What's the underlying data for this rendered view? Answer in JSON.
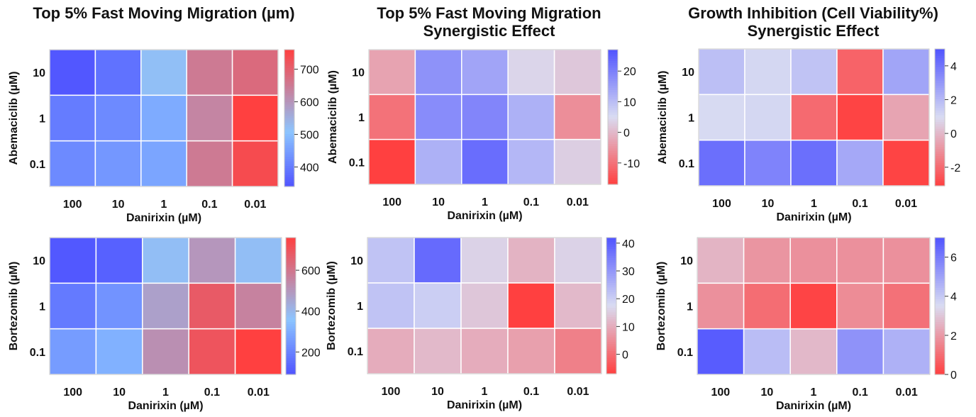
{
  "titles": {
    "col1": "Top 5%  Fast Moving Migration (µm)",
    "col2_line1": "Top 5%  Fast Moving Migration",
    "col2_line2": "Synergistic Effect",
    "col3_line1": "Growth Inhibition (Cell Viability%)",
    "col3_line2": "Synergistic Effect"
  },
  "colors": {
    "low": "#5054ff",
    "mid": "#d9dcf2",
    "mid_light_blue": "#8cc5ff",
    "high": "#ff4040",
    "grid": "#ffffff"
  },
  "chart_data": [
    {
      "type": "heatmap",
      "title": "Top 5%  Fast Moving Migration (µm)",
      "xlabel": "Danirixin (µM)",
      "ylabel": "Abemaciclib (µM)",
      "x_categories": [
        "100",
        "10",
        "1",
        "0.1",
        "0.01"
      ],
      "y_categories": [
        "10",
        "1",
        "0.1"
      ],
      "values": [
        [
          345,
          385,
          520,
          650,
          680
        ],
        [
          400,
          420,
          470,
          630,
          760
        ],
        [
          420,
          440,
          460,
          650,
          740
        ]
      ],
      "colorbar": {
        "ticks": [
          400,
          500,
          600,
          700
        ],
        "range": [
          340,
          760
        ],
        "scale": "blue-lightblue-red"
      }
    },
    {
      "type": "heatmap",
      "title": "Top 5%  Fast Moving Migration Synergistic Effect",
      "xlabel": "Danirixin (µM)",
      "ylabel": "Abemaciclib (µM)",
      "x_categories": [
        "100",
        "10",
        "1",
        "0.1",
        "0.01"
      ],
      "y_categories": [
        "10",
        "1",
        "0.1"
      ],
      "values": [
        [
          -3,
          17,
          14,
          4,
          2
        ],
        [
          -10,
          18,
          19,
          12,
          -6
        ],
        [
          -17,
          12,
          23,
          11,
          3
        ]
      ],
      "colorbar": {
        "ticks": [
          -10,
          0,
          10,
          20
        ],
        "range": [
          -17,
          27
        ],
        "scale": "red-white-blue"
      }
    },
    {
      "type": "heatmap",
      "title": "Growth Inhibition (Cell Viability%) Synergistic Effect",
      "xlabel": "Danirixin (µM)",
      "ylabel": "Abemaciclib (µM)",
      "x_categories": [
        "100",
        "10",
        "1",
        "0.1",
        "0.01"
      ],
      "y_categories": [
        "10",
        "1",
        "0.1"
      ],
      "values": [
        [
          1.8,
          1.1,
          1.7,
          -2.2,
          2.6
        ],
        [
          1.0,
          1.1,
          -2.0,
          -3.0,
          -0.5
        ],
        [
          4.2,
          3.6,
          4.2,
          2.5,
          -3.0
        ]
      ],
      "colorbar": {
        "ticks": [
          -2,
          0,
          2,
          4
        ],
        "range": [
          -3.1,
          5
        ],
        "scale": "red-white-blue"
      }
    },
    {
      "type": "heatmap",
      "title": "",
      "xlabel": "Danirixin (µM)",
      "ylabel": "Bortezomib (µM)",
      "x_categories": [
        "100",
        "10",
        "1",
        "0.1",
        "0.01"
      ],
      "y_categories": [
        "10",
        "1",
        "0.1"
      ],
      "values": [
        [
          100,
          120,
          380,
          500,
          380
        ],
        [
          180,
          240,
          470,
          680,
          560
        ],
        [
          260,
          310,
          520,
          700,
          760
        ]
      ],
      "colorbar": {
        "ticks": [
          200,
          400,
          600
        ],
        "range": [
          90,
          760
        ],
        "scale": "blue-lightblue-red"
      }
    },
    {
      "type": "heatmap",
      "title": "",
      "xlabel": "Danirixin (µM)",
      "ylabel": "Bortezomib (µM)",
      "x_categories": [
        "100",
        "10",
        "1",
        "0.1",
        "0.01"
      ],
      "y_categories": [
        "10",
        "1",
        "0.1"
      ],
      "values": [
        [
          22,
          38,
          16,
          11,
          16
        ],
        [
          22,
          20,
          14,
          -7,
          12
        ],
        [
          10,
          12,
          10,
          8,
          3
        ]
      ],
      "colorbar": {
        "ticks": [
          0,
          10,
          20,
          30,
          40
        ],
        "range": [
          -7,
          42
        ],
        "scale": "red-white-blue"
      }
    },
    {
      "type": "heatmap",
      "title": "",
      "xlabel": "Danirixin (µM)",
      "ylabel": "Bortezomib (µM)",
      "x_categories": [
        "100",
        "10",
        "1",
        "0.1",
        "0.01"
      ],
      "y_categories": [
        "10",
        "1",
        "0.1"
      ],
      "values": [
        [
          2.6,
          1.9,
          1.8,
          1.8,
          1.8
        ],
        [
          1.8,
          1.0,
          0.1,
          1.7,
          1.1
        ],
        [
          6.8,
          4.3,
          2.7,
          5.4,
          4.6
        ]
      ],
      "colorbar": {
        "ticks": [
          0,
          2,
          4,
          6
        ],
        "range": [
          0,
          7
        ],
        "scale": "red-white-blue"
      }
    }
  ]
}
